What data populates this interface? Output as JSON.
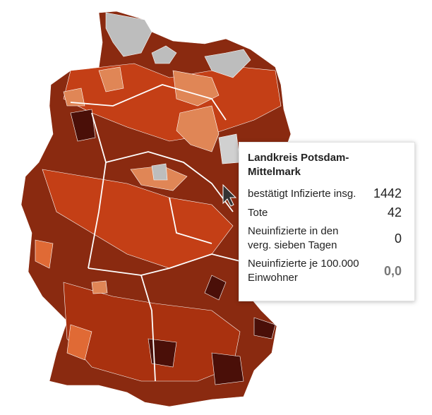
{
  "tooltip": {
    "title": "Landkreis Potsdam-Mittelmark",
    "rows": [
      {
        "label": "bestätigt Infizierte insg.",
        "value": "1442"
      },
      {
        "label": "Tote",
        "value": "42"
      },
      {
        "label": "Neuinfizierte in den verg. sieben Tagen",
        "value": "0"
      },
      {
        "label": "Neuinfizierte je 100.000 Einwohner",
        "value": "0,0"
      }
    ]
  }
}
